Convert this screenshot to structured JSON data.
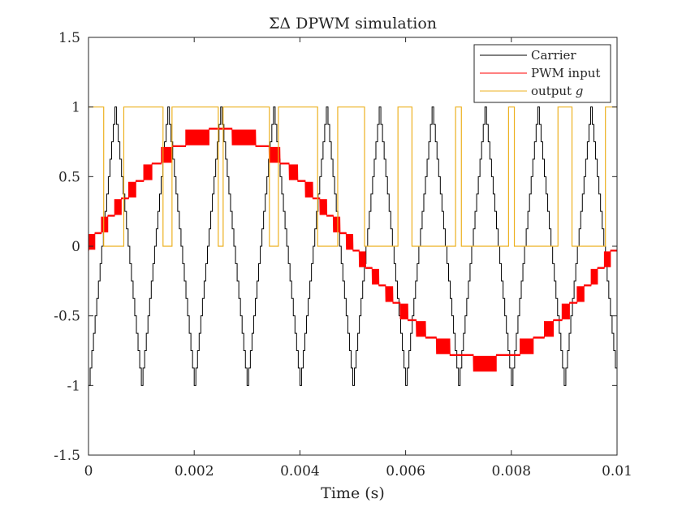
{
  "chart_data": {
    "type": "line",
    "title": "ΣΔ DPWM simulation",
    "xlabel": "Time (s)",
    "ylabel": "",
    "xlim": [
      0,
      0.01
    ],
    "ylim": [
      -1.5,
      1.5
    ],
    "x_ticks": [
      0,
      0.002,
      0.004,
      0.006,
      0.008,
      0.01
    ],
    "x_tick_labels": [
      "0",
      "0.002",
      "0.004",
      "0.006",
      "0.008",
      "0.01"
    ],
    "y_ticks": [
      -1.5,
      -1,
      -0.5,
      0,
      0.5,
      1,
      1.5
    ],
    "y_tick_labels": [
      "-1.5",
      "-1",
      "-0.5",
      "0",
      "0.5",
      "1",
      "1.5"
    ],
    "grid": false,
    "legend_position": "top-right",
    "series": [
      {
        "name": "Carrier",
        "color": "#000000",
        "shape": "quantized triangle wave",
        "period": 0.001,
        "min": -1,
        "max": 1,
        "peak_times": [
          0.0005,
          0.0015,
          0.0025,
          0.0035,
          0.0045,
          0.0055,
          0.0065,
          0.0075,
          0.0085,
          0.0095
        ],
        "trough_times": [
          0,
          0.001,
          0.002,
          0.003,
          0.004,
          0.005,
          0.006,
          0.007,
          0.008,
          0.009,
          0.01
        ]
      },
      {
        "name": "PWM input",
        "color": "#ff0000",
        "shape": "quantized sinusoid with dithering band",
        "amplitude": 0.82,
        "frequency_hz": 100,
        "offset": 0
      },
      {
        "name": "output g",
        "color": "#edb120",
        "shape": "binary 0/1 switching waveform",
        "levels": [
          0,
          1
        ]
      }
    ]
  }
}
